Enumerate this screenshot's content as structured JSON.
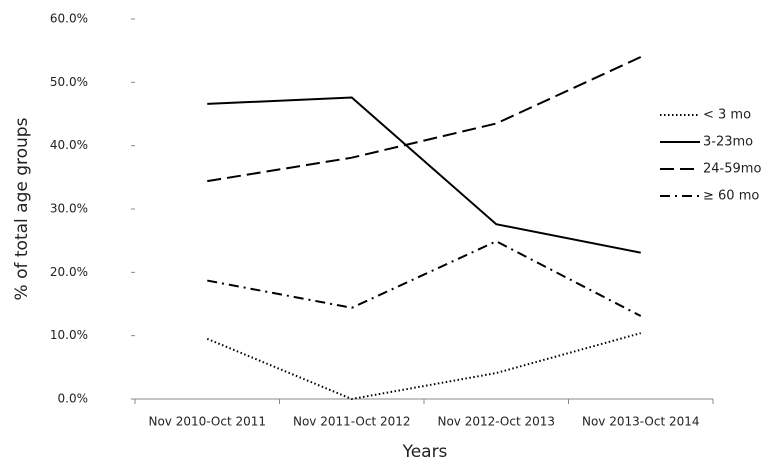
{
  "chart_data": {
    "type": "line",
    "x_label": "Years",
    "y_label": "% of total age groups",
    "categories": [
      "Nov 2010-Oct 2011",
      "Nov 2011-Oct 2012",
      "Nov 2012-Oct 2013",
      "Nov 2013-Oct 2014"
    ],
    "series": [
      {
        "name": "< 3 mo",
        "color": "#000000",
        "dash": "dotted",
        "values": [
          9.5,
          0,
          4.1,
          10.4
        ]
      },
      {
        "name": "3-23mo",
        "color": "#000000",
        "dash": "solid",
        "values": [
          46.6,
          47.6,
          27.6,
          23.1
        ]
      },
      {
        "name": "24-59mo",
        "color": "#000000",
        "dash": "dashed",
        "values": [
          34.4,
          38.1,
          43.5,
          54.0
        ]
      },
      {
        "name": "≥ 60 mo",
        "color": "#000000",
        "dash": "dashdot",
        "values": [
          18.7,
          14.4,
          24.9,
          13.1
        ]
      }
    ],
    "ylim": [
      0,
      60
    ],
    "yticks": [
      {
        "value": 0,
        "label": "0.0%"
      },
      {
        "value": 10,
        "label": "10.0%"
      },
      {
        "value": 20,
        "label": "20.0%"
      },
      {
        "value": 30,
        "label": "30.0%"
      },
      {
        "value": 40,
        "label": "40.0%"
      },
      {
        "value": 50,
        "label": "50.0%"
      },
      {
        "value": 60,
        "label": "60.0%"
      }
    ],
    "legend": "right"
  }
}
